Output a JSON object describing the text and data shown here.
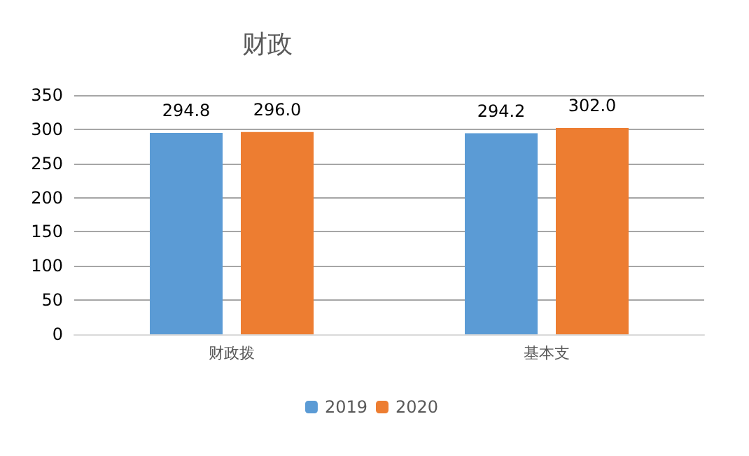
{
  "chart_data": {
    "type": "bar",
    "title": "财政",
    "categories": [
      "财政拨",
      "基本支"
    ],
    "series": [
      {
        "name": "2019",
        "color": "#5b9bd5",
        "values": [
          294.8,
          294.2
        ],
        "value_labels": [
          "294.8",
          "294.2"
        ]
      },
      {
        "name": "2020",
        "color": "#ed7d31",
        "values": [
          296.0,
          302.0
        ],
        "value_labels": [
          "296.0",
          "302.0"
        ]
      }
    ],
    "ylim": [
      0,
      350
    ],
    "yticks": [
      0,
      50,
      100,
      150,
      200,
      250,
      300,
      350
    ],
    "grid": "y",
    "legend": "bottom"
  }
}
